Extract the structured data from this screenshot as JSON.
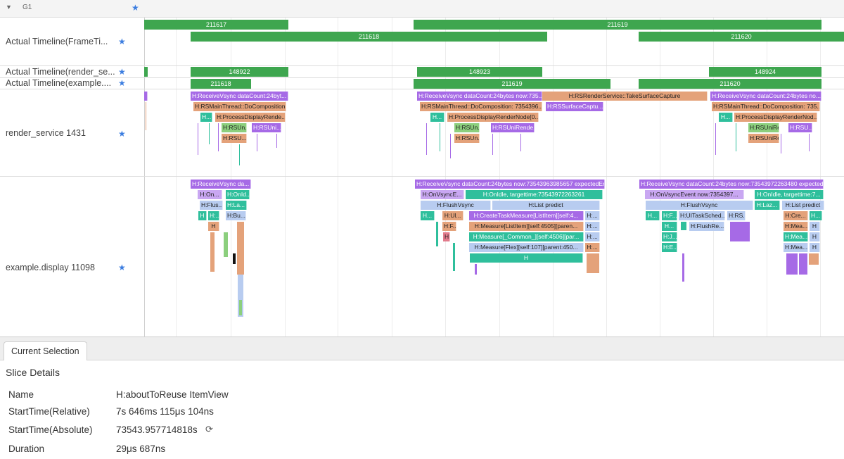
{
  "group": {
    "label": "G1",
    "collapse_glyph": "▼"
  },
  "rows": {
    "actual_frametimeline": "Actual Timeline(FrameTi...",
    "actual_render_service": "Actual Timeline(render_se...",
    "actual_example": "Actual Timeline(example....",
    "render_service": "render_service 1431",
    "example_display": "example.display 11098"
  },
  "frames": {
    "f211617": "211617",
    "f211619": "211619",
    "f211618": "211618",
    "f211620": "211620",
    "r148922": "148922",
    "r148923": "148923",
    "r148924": "148924",
    "e211618": "211618",
    "e211619": "211619",
    "e211620": "211620"
  },
  "slices": {
    "rs_rv1": "H:ReceiveVsync dataCount:24byt...",
    "rs_rv2": "H:ReceiveVsync dataCount:24bytes now:735...",
    "rs_take": "H:RSRenderService::TakeSurfaceCapture",
    "rs_rv3": "H:ReceiveVsync dataCount:24bytes no...",
    "rs_mt1": "H:RSMainThread::DoComposition...",
    "rs_mt2": "H:RSMainThread::DoComposition: 7354396...",
    "rs_surf": "H:RSSurfaceCaptu...",
    "rs_mt3": "H:RSMainThread::DoComposition: 735...",
    "rs_h1": "H...",
    "rs_pd1": "H:ProcessDisplayRende...",
    "rs_h2": "H...",
    "rs_pd2": "H:ProcessDisplayRenderNode[0...",
    "rs_h3": "H...",
    "rs_pd3": "H:ProcessDisplayRenderNod...",
    "rs_un1": "H:RSUn...",
    "rs_un2": "H:RSUni...",
    "rs_un3": "H:RSUn...",
    "rs_un4": "H:RSUniRende...",
    "rs_un5": "H:RSUniRe...",
    "rs_un6": "H:RSU...",
    "rs_ru1": "H:RSU...",
    "rs_ru2": "H:RSUn...",
    "rs_ru3": "H:RSUniRe...",
    "ex_rv1": "H:ReceiveVsync da...",
    "ex_rv2": "H:ReceiveVsync dataCount:24bytes now:73543963985657 expectedEnd...",
    "ex_rv3": "H:ReceiveVsync dataCount:24bytes now:73543972263480 expectedEn...",
    "ex_on1": "H:On...",
    "ex_idle1": "H:OnId...",
    "ex_on2": "H:OnVsyncE...",
    "ex_idle2": "H:OnIdle, targettime:73543972263261",
    "ex_on3": "H:OnVsyncEvent now:7354397...",
    "ex_idle3": "H:OnIdle, targettime:7...",
    "ex_fl1": "H:Flus...",
    "ex_la1": "H:La...",
    "ex_fl2": "H:FlushVsync",
    "ex_lp2": "H:List predict",
    "ex_fl3": "H:FlushVsync",
    "ex_la3": "H:Laz...",
    "ex_lp3": "H:List predict",
    "ex_h1": "H",
    "ex_h1b": "H:...",
    "ex_bu1": "H:Bu...",
    "ex_h2": "H...",
    "ex_ui2": "H:Ul...",
    "ex_ct2": "H:CreateTaskMeasure[ListItem][self:4...",
    "ex_h2b": "H:...",
    "ex_h3": "H...",
    "ex_f3": "H:F...",
    "ex_uit3": "H:UITaskSched...",
    "ex_rs3": "H:RS...",
    "ex_cre3": "H:Cre...",
    "ex_h3b": "H...",
    "ex_h1c": "H",
    "ex_f2": "H:F...",
    "ex_mli2": "H:Measure[ListItem][self:4505][paren...",
    "ex_h2c": "H:...",
    "ex_h3c": "H...",
    "ex_flr3": "H:FlushRe...",
    "ex_mea3": "H:Mea...",
    "ex_h3d": "H",
    "ex_h2d": "H",
    "ex_mc2": "H:Measure[_Common_][self:4506][par...",
    "ex_h2e": "H:...",
    "ex_j3": "H:J...",
    "ex_mea3b": "H:Mea...",
    "ex_h3e": "H",
    "ex_mfx2": "H:Measure[Flex][self:107][parent:450...",
    "ex_h2f": "H:...",
    "ex_e3": "H:E...",
    "ex_mea3c": "H:Mea...",
    "ex_h3f": "H",
    "ex_hlast": "H"
  },
  "tabs": {
    "current": "Current Selection"
  },
  "details": {
    "title": "Slice Details",
    "name_key": "Name",
    "name_val": "H:aboutToReuse ItemView",
    "start_rel_key": "StartTime(Relative)",
    "start_rel_val": "7s 646ms 115μs 104ns",
    "start_abs_key": "StartTime(Absolute)",
    "start_abs_val": "73543.957714818s",
    "duration_key": "Duration",
    "duration_val": "29μs 687ns"
  },
  "icons": {
    "star": "★",
    "refresh": "⟳"
  },
  "colors": {
    "frame_green": "#3ea64f",
    "star_blue": "#3b7de0"
  }
}
